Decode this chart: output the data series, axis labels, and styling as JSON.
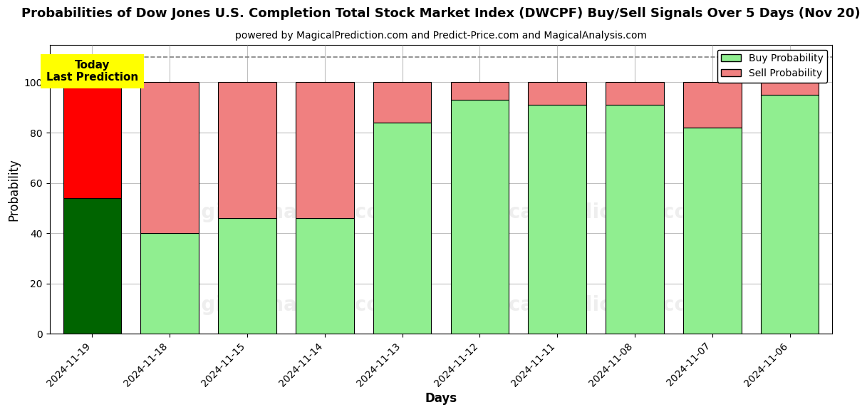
{
  "title": "Probabilities of Dow Jones U.S. Completion Total Stock Market Index (DWCPF) Buy/Sell Signals Over 5 Days (Nov 20)",
  "subtitle": "powered by MagicalPrediction.com and Predict-Price.com and MagicalAnalysis.com",
  "xlabel": "Days",
  "ylabel": "Probability",
  "dates": [
    "2024-11-19",
    "2024-11-18",
    "2024-11-15",
    "2024-11-14",
    "2024-11-13",
    "2024-11-12",
    "2024-11-11",
    "2024-11-08",
    "2024-11-07",
    "2024-11-06"
  ],
  "buy_values": [
    54,
    40,
    46,
    46,
    84,
    93,
    91,
    91,
    82,
    95
  ],
  "sell_values": [
    46,
    60,
    54,
    54,
    16,
    7,
    9,
    9,
    18,
    5
  ],
  "today_bar_buy_color": "#006400",
  "today_bar_sell_color": "#FF0000",
  "regular_bar_buy_color": "#90EE90",
  "regular_bar_sell_color": "#F08080",
  "bar_edge_color": "black",
  "annotation_text": "Today\nLast Prediction",
  "annotation_bg_color": "#FFFF00",
  "annotation_fontsize": 11,
  "dashed_line_y": 110,
  "dashed_line_color": "gray",
  "dashed_line_style": "--",
  "ylim": [
    0,
    115
  ],
  "yticks": [
    0,
    20,
    40,
    60,
    80,
    100
  ],
  "grid_color": "gray",
  "grid_alpha": 0.5,
  "title_fontsize": 13,
  "subtitle_fontsize": 10,
  "axis_label_fontsize": 12,
  "tick_fontsize": 10,
  "legend_fontsize": 10,
  "bar_width": 0.75,
  "watermark_texts": [
    "MagicalAnalysis.com",
    "MagicalPrediction.com"
  ],
  "watermark_alpha": 0.13
}
